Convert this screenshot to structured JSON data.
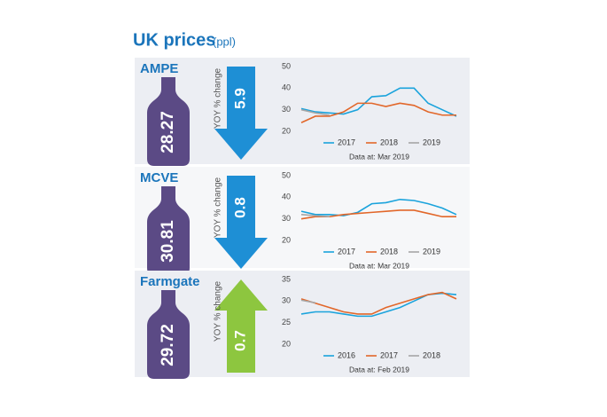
{
  "title": "UK prices",
  "unit": "(ppl)",
  "panels": [
    {
      "label": "AMPE",
      "price": 28.27,
      "yoy_label": "YOY % change",
      "change": 5.9,
      "direction": "down",
      "arrow_color": "#1e8fd5"
    },
    {
      "label": "MCVE",
      "price": 30.81,
      "yoy_label": "YOY % change",
      "change": 0.8,
      "direction": "down",
      "arrow_color": "#1e8fd5"
    },
    {
      "label": "Farmgate",
      "price": 29.72,
      "yoy_label": "YOY % change",
      "change": 0.7,
      "direction": "up",
      "arrow_color": "#8dc63f"
    }
  ],
  "chart_data": [
    {
      "type": "line",
      "note": "Data at: Mar 2019",
      "ylim": [
        20,
        50
      ],
      "yticks": [
        20,
        30,
        40,
        50
      ],
      "series": [
        {
          "name": "2017",
          "color": "#1aa3dc",
          "values": [
            30.5,
            29,
            28.5,
            28,
            30,
            36,
            36.5,
            40,
            40,
            33,
            30,
            27
          ]
        },
        {
          "name": "2018",
          "color": "#e2672a",
          "values": [
            24,
            27,
            27,
            29,
            33,
            33,
            31.5,
            33,
            32,
            29,
            27.5,
            27.5
          ]
        },
        {
          "name": "2019",
          "color": "#a6a6a6",
          "values": [
            30,
            28.5,
            27.5,
            null,
            null,
            null,
            null,
            null,
            null,
            null,
            null,
            null
          ]
        }
      ]
    },
    {
      "type": "line",
      "note": "Data at: Mar 2019",
      "ylim": [
        20,
        50
      ],
      "yticks": [
        20,
        30,
        40,
        50
      ],
      "series": [
        {
          "name": "2017",
          "color": "#1aa3dc",
          "values": [
            33.5,
            32,
            32,
            31.5,
            33,
            37,
            37.5,
            39,
            38.5,
            37,
            35,
            32
          ]
        },
        {
          "name": "2018",
          "color": "#e2672a",
          "values": [
            30,
            31,
            31,
            32,
            32.5,
            33,
            33.5,
            34,
            34,
            32.5,
            31,
            31
          ]
        },
        {
          "name": "2019",
          "color": "#a6a6a6",
          "values": [
            32,
            31.5,
            31,
            null,
            null,
            null,
            null,
            null,
            null,
            null,
            null,
            null
          ]
        }
      ]
    },
    {
      "type": "line",
      "note": "Data at: Feb 2019",
      "ylim": [
        20,
        35
      ],
      "yticks": [
        20,
        25,
        30,
        35
      ],
      "series": [
        {
          "name": "2016",
          "color": "#1aa3dc",
          "values": [
            27,
            27.5,
            27.5,
            27,
            26.5,
            26.5,
            27.5,
            28.5,
            30,
            31.5,
            31.8,
            31.5
          ]
        },
        {
          "name": "2017",
          "color": "#e2672a",
          "values": [
            30.5,
            29.5,
            28.5,
            27.5,
            27,
            27,
            28.5,
            29.5,
            30.5,
            31.5,
            32,
            30.5
          ]
        },
        {
          "name": "2018",
          "color": "#a6a6a6",
          "values": [
            30.2,
            29.6,
            null,
            null,
            null,
            null,
            null,
            null,
            null,
            null,
            null,
            null
          ]
        }
      ]
    }
  ]
}
